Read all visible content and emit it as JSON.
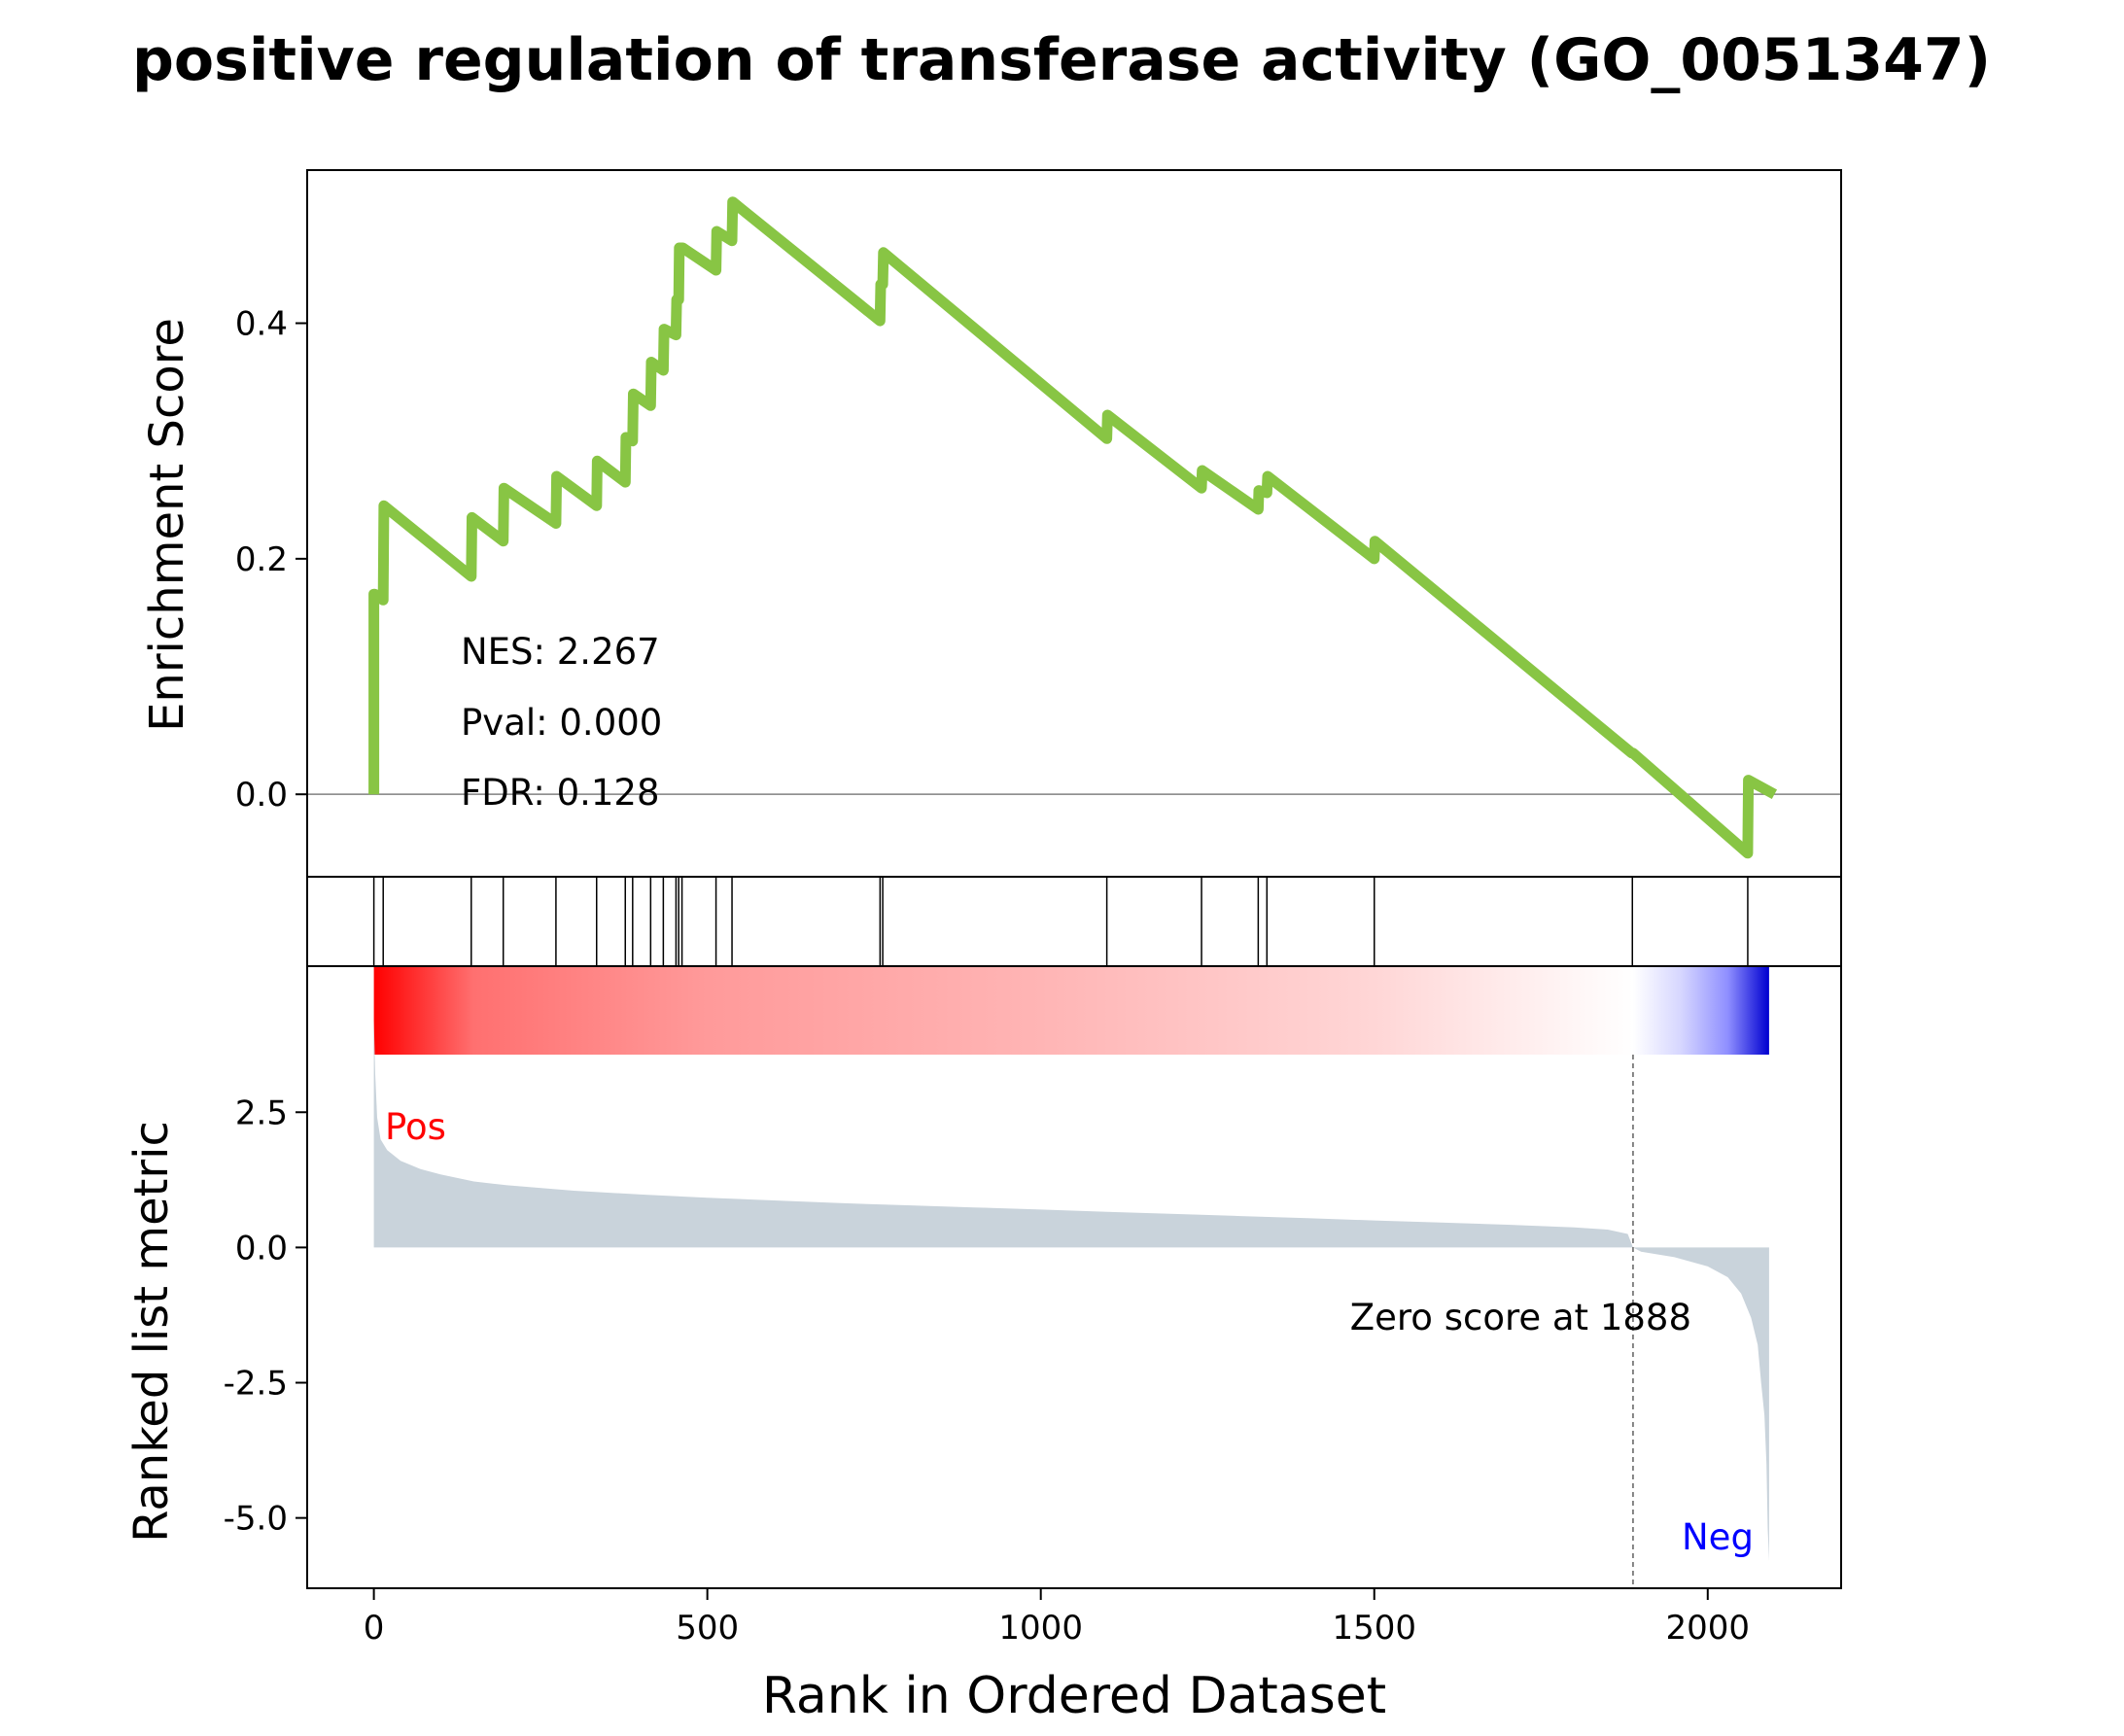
{
  "chart_data": {
    "type": "line",
    "title": "positive regulation of transferase activity (GO_0051347)",
    "xlabel": "Rank in Ordered Dataset",
    "xlim": [
      -100,
      2200
    ],
    "x_ticks": [
      "0",
      "500",
      "1000",
      "1500",
      "2000"
    ],
    "enrichment": {
      "ylabel": "Enrichment Score",
      "ylim": [
        -0.07,
        0.53
      ],
      "y_ticks": [
        "0.0",
        "0.2",
        "0.4"
      ],
      "color": "#88c544",
      "stats": {
        "nes": "NES: 2.267",
        "pval": "Pval: 0.000",
        "fdr": "FDR: 0.128"
      },
      "x": [
        0,
        0,
        1,
        14,
        15,
        146,
        147,
        194,
        195,
        273,
        274,
        334,
        335,
        377,
        378,
        388,
        389,
        415,
        416,
        434,
        435,
        453,
        454,
        457,
        458,
        462,
        463,
        513,
        514,
        537,
        538,
        759,
        760,
        763,
        764,
        1099,
        1100,
        1241,
        1242,
        1326,
        1327,
        1339,
        1340,
        1500,
        1501,
        1886,
        1887,
        1888,
        2060,
        2061,
        2100
      ],
      "y": [
        0.0,
        0.17,
        0.17,
        0.165,
        0.245,
        0.185,
        0.235,
        0.215,
        0.26,
        0.23,
        0.27,
        0.245,
        0.283,
        0.265,
        0.303,
        0.3,
        0.34,
        0.33,
        0.367,
        0.36,
        0.395,
        0.39,
        0.42,
        0.42,
        0.464,
        0.464,
        0.464,
        0.445,
        0.478,
        0.47,
        0.503,
        0.402,
        0.433,
        0.433,
        0.46,
        0.302,
        0.322,
        0.26,
        0.275,
        0.242,
        0.258,
        0.256,
        0.27,
        0.2,
        0.215,
        0.035,
        0.035,
        0.035,
        -0.05,
        0.012,
        0.0
      ]
    },
    "hits": [
      0,
      14,
      146,
      194,
      273,
      334,
      377,
      388,
      415,
      434,
      453,
      457,
      462,
      513,
      537,
      759,
      763,
      1099,
      1241,
      1326,
      1339,
      1500,
      1887,
      2060
    ],
    "ranked_metric": {
      "ylabel": "Ranked list metric",
      "ylim": [
        -6.3,
        5.2
      ],
      "y_ticks": [
        "2.5",
        "0.0",
        "-2.5",
        "-5.0"
      ],
      "fill_color": "#c9d3db",
      "x": [
        0,
        2,
        5,
        10,
        20,
        40,
        70,
        100,
        150,
        200,
        300,
        400,
        500,
        600,
        700,
        800,
        900,
        1000,
        1100,
        1200,
        1300,
        1400,
        1500,
        1600,
        1700,
        1800,
        1850,
        1880,
        1888,
        1900,
        1950,
        2000,
        2030,
        2050,
        2065,
        2075,
        2080,
        2085,
        2088,
        2090,
        2092
      ],
      "values": [
        4.2,
        3.2,
        2.4,
        2.0,
        1.8,
        1.6,
        1.45,
        1.35,
        1.22,
        1.15,
        1.05,
        0.98,
        0.92,
        0.87,
        0.82,
        0.78,
        0.74,
        0.7,
        0.66,
        0.62,
        0.58,
        0.54,
        0.5,
        0.46,
        0.42,
        0.37,
        0.33,
        0.25,
        0.0,
        -0.08,
        -0.18,
        -0.35,
        -0.55,
        -0.85,
        -1.3,
        -1.8,
        -2.5,
        -3.1,
        -4.0,
        -5.2,
        -5.8
      ],
      "zero_score_line": 1888,
      "zero_label": "Zero score at 1888",
      "pos_label": "Pos",
      "neg_label": "Neg",
      "pos_color": "#ff0000",
      "neg_color": "#0000ff",
      "gradient_colors": [
        "#ff0000",
        "#ff7070",
        "#ff9a9a",
        "#ffb5b5",
        "#ffd6d6",
        "#ffffff",
        "#d6d6ff",
        "#8f8fff",
        "#0000d0"
      ],
      "gradient_ranks": [
        0,
        150,
        500,
        1000,
        1500,
        1888,
        1960,
        2030,
        2092
      ]
    }
  }
}
